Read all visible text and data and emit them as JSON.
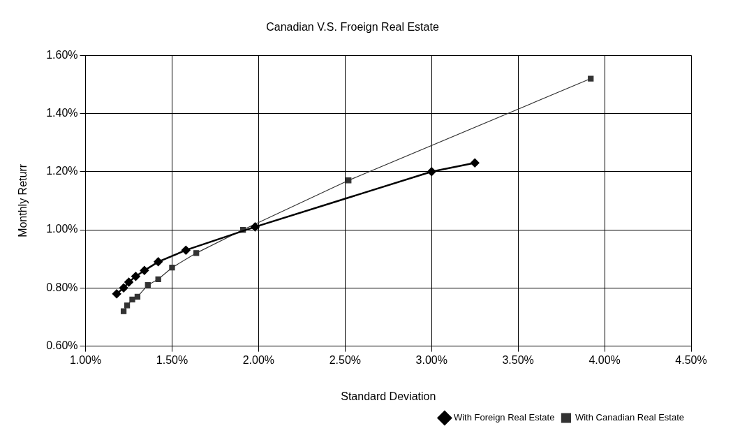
{
  "chart_data": {
    "type": "line",
    "title": "Canadian V.S. Froeign Real Estate",
    "xlabel": "Standard Deviation",
    "ylabel": "Monthly Returr",
    "xlim": [
      1.0,
      4.5
    ],
    "xticks": [
      {
        "value": 1.0,
        "label": "1.00%"
      },
      {
        "value": 1.5,
        "label": "1.50%"
      },
      {
        "value": 2.0,
        "label": "2.00%"
      },
      {
        "value": 2.5,
        "label": "2.50%"
      },
      {
        "value": 3.0,
        "label": "3.00%"
      },
      {
        "value": 3.5,
        "label": "3.50%"
      },
      {
        "value": 4.0,
        "label": "4.00%"
      },
      {
        "value": 4.5,
        "label": "4.50%"
      }
    ],
    "ylim": [
      0.6,
      1.6
    ],
    "yticks": [
      {
        "value": 0.6,
        "label": "0.60%"
      },
      {
        "value": 0.8,
        "label": "0.80%"
      },
      {
        "value": 1.0,
        "label": "1.00%"
      },
      {
        "value": 1.2,
        "label": "1.20%"
      },
      {
        "value": 1.4,
        "label": "1.40%"
      },
      {
        "value": 1.6,
        "label": "1.60%"
      }
    ],
    "grid": true,
    "legend": "bottom right",
    "line_style": "solid",
    "series": [
      {
        "name": "With Foreign Real Estate",
        "color": "#000000",
        "marker": "diamond",
        "x": [
          1.18,
          1.22,
          1.25,
          1.29,
          1.34,
          1.42,
          1.58,
          1.98,
          3.0,
          3.25
        ],
        "values": [
          0.78,
          0.8,
          0.82,
          0.84,
          0.86,
          0.89,
          0.93,
          1.01,
          1.2,
          1.23
        ]
      },
      {
        "name": "With Canadian Real Estate",
        "color": "#333333",
        "marker": "square",
        "x": [
          1.22,
          1.24,
          1.27,
          1.3,
          1.36,
          1.42,
          1.5,
          1.64,
          1.91,
          2.52,
          3.92
        ],
        "values": [
          0.72,
          0.74,
          0.76,
          0.77,
          0.81,
          0.83,
          0.87,
          0.92,
          1.0,
          1.17,
          1.52
        ]
      }
    ]
  }
}
